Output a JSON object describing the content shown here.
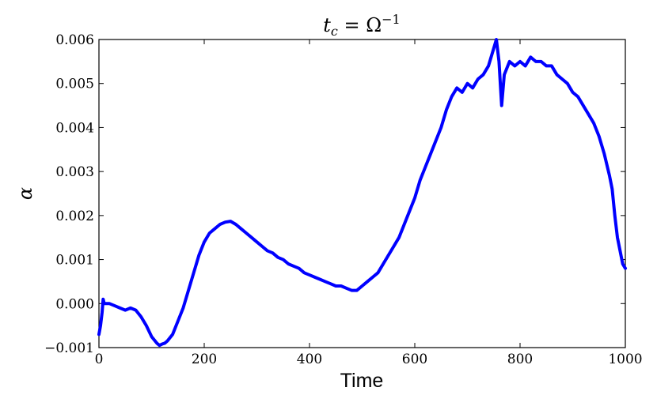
{
  "chart_data": {
    "type": "line",
    "title": "t_c = Ω^-1",
    "title_parts": {
      "base": "t",
      "sub": "c",
      "eq": " = Ω",
      "sup": "−1"
    },
    "xlabel": "Time",
    "ylabel": "α",
    "xlim": [
      0,
      1000
    ],
    "ylim": [
      -0.001,
      0.006
    ],
    "x_ticks": [
      0,
      200,
      400,
      600,
      800,
      1000
    ],
    "x_tick_labels": [
      "0",
      "200",
      "400",
      "600",
      "800",
      "1000"
    ],
    "y_ticks": [
      -0.001,
      0.0,
      0.001,
      0.002,
      0.003,
      0.004,
      0.005,
      0.006
    ],
    "y_tick_labels": [
      "−0.001",
      "0.000",
      "0.001",
      "0.002",
      "0.003",
      "0.004",
      "0.005",
      "0.006"
    ],
    "grid": false,
    "legend": "none",
    "series_color": "#0000ff",
    "series": [
      {
        "x": [
          0,
          3,
          6,
          8,
          10,
          15,
          20,
          30,
          40,
          50,
          60,
          70,
          80,
          90,
          100,
          110,
          115,
          120,
          125,
          130,
          140,
          150,
          160,
          170,
          180,
          190,
          200,
          210,
          220,
          230,
          240,
          250,
          260,
          270,
          280,
          290,
          300,
          310,
          320,
          330,
          340,
          350,
          360,
          370,
          380,
          390,
          400,
          410,
          420,
          430,
          440,
          450,
          460,
          470,
          480,
          490,
          500,
          510,
          520,
          530,
          540,
          550,
          560,
          570,
          580,
          590,
          600,
          610,
          620,
          630,
          640,
          650,
          660,
          670,
          680,
          690,
          700,
          710,
          720,
          730,
          740,
          750,
          755,
          760,
          765,
          770,
          780,
          790,
          800,
          810,
          820,
          830,
          840,
          850,
          860,
          870,
          880,
          890,
          900,
          910,
          920,
          930,
          940,
          950,
          960,
          970,
          975,
          980,
          985,
          990,
          995,
          1000
        ],
        "y": [
          -0.0007,
          -0.0005,
          -0.0002,
          0.0001,
          0.0,
          0.0,
          0.0,
          -5e-05,
          -0.0001,
          -0.00015,
          -0.0001,
          -0.00015,
          -0.0003,
          -0.0005,
          -0.00075,
          -0.0009,
          -0.00095,
          -0.00092,
          -0.0009,
          -0.00085,
          -0.0007,
          -0.0004,
          -0.0001,
          0.0003,
          0.0007,
          0.0011,
          0.0014,
          0.0016,
          0.0017,
          0.0018,
          0.00185,
          0.00187,
          0.0018,
          0.0017,
          0.0016,
          0.0015,
          0.0014,
          0.0013,
          0.0012,
          0.00115,
          0.00105,
          0.001,
          0.0009,
          0.00085,
          0.0008,
          0.0007,
          0.00065,
          0.0006,
          0.00055,
          0.0005,
          0.00045,
          0.0004,
          0.0004,
          0.00035,
          0.0003,
          0.0003,
          0.0004,
          0.0005,
          0.0006,
          0.0007,
          0.0009,
          0.0011,
          0.0013,
          0.0015,
          0.0018,
          0.0021,
          0.0024,
          0.0028,
          0.0031,
          0.0034,
          0.0037,
          0.004,
          0.0044,
          0.0047,
          0.0049,
          0.0048,
          0.005,
          0.0049,
          0.0051,
          0.0052,
          0.0054,
          0.0058,
          0.006,
          0.0055,
          0.0045,
          0.0052,
          0.0055,
          0.0054,
          0.0055,
          0.0054,
          0.0056,
          0.0055,
          0.0055,
          0.0054,
          0.0054,
          0.0052,
          0.0051,
          0.005,
          0.0048,
          0.0047,
          0.0045,
          0.0043,
          0.0041,
          0.0038,
          0.0034,
          0.0029,
          0.0026,
          0.002,
          0.0015,
          0.0012,
          0.0009,
          0.0008
        ]
      }
    ]
  }
}
